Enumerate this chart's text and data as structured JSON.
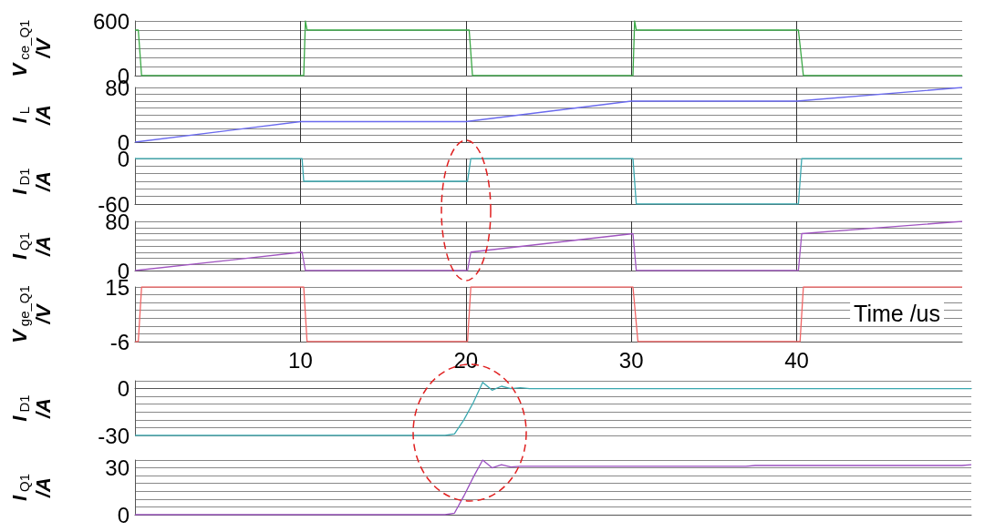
{
  "chart_data": [
    {
      "type": "line",
      "ylabel": "V$_{ce_Q1}$ /V",
      "xlim": [
        0,
        50
      ],
      "xticks": [
        10,
        20,
        30,
        40
      ],
      "ylim": [
        0,
        600
      ],
      "yticks": [
        0,
        {
          "value": 100,
          "label": null
        },
        {
          "value": 200,
          "label": null
        },
        {
          "value": 300,
          "label": null
        },
        {
          "value": 400,
          "label": null
        },
        {
          "value": 500,
          "label": null
        },
        600
      ],
      "grid": true,
      "tick_labels": "y",
      "marker": "none",
      "series": [
        {
          "color": "#3aa845",
          "x": [
            0,
            0.2,
            0.4,
            10.2,
            10.3,
            10.4,
            20.2,
            20.4,
            30.1,
            30.2,
            30.3,
            40.1,
            40.4,
            50
          ],
          "values": [
            500,
            500,
            0,
            0,
            600,
            500,
            500,
            0,
            0,
            600,
            500,
            500,
            0,
            0
          ]
        }
      ]
    },
    {
      "type": "line",
      "ylabel": "I$_{L}$ /A",
      "xlim": [
        0,
        50
      ],
      "xticks": [
        10,
        20,
        30,
        40
      ],
      "ylim": [
        0,
        80
      ],
      "yticks": [
        0,
        {
          "value": 10,
          "label": null
        },
        {
          "value": 20,
          "label": null
        },
        {
          "value": 30,
          "label": null
        },
        {
          "value": 40,
          "label": null
        },
        {
          "value": 50,
          "label": null
        },
        {
          "value": 60,
          "label": null
        },
        {
          "value": 70,
          "label": null
        },
        80
      ],
      "grid": true,
      "tick_labels": "y",
      "marker": "none",
      "series": [
        {
          "color": "#6a6aee",
          "x": [
            0,
            10,
            20,
            30,
            40,
            50
          ],
          "values": [
            0,
            30,
            30,
            60,
            60,
            80
          ]
        }
      ]
    },
    {
      "type": "line",
      "ylabel": "I$_{D1}$ /A",
      "xlim": [
        0,
        50
      ],
      "xticks": [
        10,
        20,
        30,
        40
      ],
      "ylim": [
        -60,
        0
      ],
      "yticks": [
        -60,
        {
          "value": -50,
          "label": null
        },
        {
          "value": -40,
          "label": null
        },
        {
          "value": -30,
          "label": null
        },
        {
          "value": -20,
          "label": null
        },
        {
          "value": -10,
          "label": null
        },
        0
      ],
      "grid": true,
      "tick_labels": "y",
      "marker": "none",
      "series": [
        {
          "color": "#3aa8b0",
          "x": [
            0,
            10.1,
            10.2,
            20.1,
            20.3,
            30.1,
            30.3,
            40.1,
            40.3,
            50
          ],
          "values": [
            0,
            0,
            -30,
            -30,
            0,
            0,
            -60,
            -60,
            0,
            0
          ]
        }
      ]
    },
    {
      "type": "line",
      "ylabel": "I$_{Q1}$ /A",
      "xlim": [
        0,
        50
      ],
      "xticks": [
        10,
        20,
        30,
        40
      ],
      "ylim": [
        0,
        80
      ],
      "yticks": [
        0,
        {
          "value": 10,
          "label": null
        },
        {
          "value": 20,
          "label": null
        },
        {
          "value": 30,
          "label": null
        },
        {
          "value": 40,
          "label": null
        },
        {
          "value": 50,
          "label": null
        },
        {
          "value": 60,
          "label": null
        },
        {
          "value": 70,
          "label": null
        },
        80
      ],
      "grid": true,
      "tick_labels": "y",
      "marker": "none",
      "series": [
        {
          "color": "#a055c0",
          "x": [
            0,
            10.1,
            10.3,
            20.1,
            20.3,
            30.1,
            30.3,
            40.1,
            40.3,
            50
          ],
          "values": [
            0,
            30,
            0,
            0,
            30,
            60,
            0,
            0,
            60,
            80
          ]
        }
      ]
    },
    {
      "type": "line",
      "ylabel": "V$_{ge_Q1}$ /V",
      "xlabel": "Time /us",
      "xlim": [
        0,
        50
      ],
      "xticks": [
        10,
        20,
        30,
        40
      ],
      "ylim": [
        -6,
        15
      ],
      "yticks": [
        -6,
        {
          "value": -3,
          "label": null
        },
        {
          "value": 0,
          "label": null
        },
        {
          "value": 3,
          "label": null
        },
        {
          "value": 6,
          "label": null
        },
        {
          "value": 9,
          "label": null
        },
        {
          "value": 12,
          "label": null
        },
        15
      ],
      "grid": true,
      "marker": "none",
      "series": [
        {
          "color": "#f06464",
          "x": [
            0,
            0.2,
            0.4,
            10.2,
            10.4,
            20.1,
            20.3,
            30.1,
            30.4,
            40.2,
            40.4,
            50
          ],
          "values": [
            -6,
            -6,
            15,
            15,
            -6,
            -6,
            15,
            15,
            -6,
            -6,
            15,
            15
          ]
        }
      ]
    },
    {
      "type": "line",
      "ylabel": "I$_{D1}$ /A",
      "categories": [
        null,
        null,
        null,
        null,
        null,
        null,
        null,
        null,
        null,
        null,
        null,
        null,
        null,
        null,
        null,
        null,
        null,
        null,
        null,
        null,
        null,
        null,
        null,
        null,
        null,
        null,
        null,
        null,
        null,
        null,
        null,
        null,
        null,
        null,
        null,
        null,
        null,
        null,
        null,
        null,
        null,
        null,
        null,
        null,
        null,
        null,
        null,
        null,
        null,
        null,
        null,
        null,
        null,
        null,
        null,
        null,
        null,
        null,
        null,
        null,
        null,
        null,
        null,
        null,
        null,
        null,
        null,
        null,
        null,
        null,
        null,
        null,
        null,
        null,
        null,
        null,
        null,
        null,
        null,
        null,
        null,
        null,
        null,
        null,
        null,
        null,
        null,
        null,
        null,
        null
      ],
      "ylim": [
        -30,
        5
      ],
      "yticks": [
        -30,
        {
          "value": -25,
          "label": null
        },
        {
          "value": -20,
          "label": null
        },
        {
          "value": -15,
          "label": null
        },
        {
          "value": -10,
          "label": null
        },
        {
          "value": -5,
          "label": null
        },
        0,
        {
          "value": 5,
          "label": null
        }
      ],
      "grid": "y",
      "tick_labels": "y",
      "marker": "none",
      "series": [
        {
          "color": "#3aa8b0",
          "values": [
            -30,
            -30,
            -30,
            -30,
            -30,
            -30,
            -30,
            -30,
            -30,
            -30,
            -30,
            -30,
            -30,
            -30,
            -30,
            -30,
            -30,
            -30,
            -30,
            -30,
            -30,
            -30,
            -30,
            -30,
            -30,
            -30,
            -30,
            -30,
            -30,
            -30,
            -30,
            -30,
            -30,
            -30,
            -29,
            -20,
            -9,
            4,
            -1,
            1.5,
            0,
            0.5,
            0,
            0,
            0,
            0,
            0,
            0,
            0,
            0,
            0,
            0,
            0,
            0,
            0,
            0,
            0,
            0,
            0,
            0,
            0,
            0,
            0,
            0,
            0,
            0,
            0,
            0,
            0,
            0,
            0,
            0,
            0,
            0,
            0,
            0,
            0,
            0,
            0,
            0,
            0,
            0,
            0,
            0,
            0,
            0,
            0,
            0,
            0,
            0
          ]
        }
      ]
    },
    {
      "type": "line",
      "ylabel": "I$_{Q1}$ /A",
      "categories": [
        null,
        null,
        null,
        null,
        null,
        null,
        null,
        null,
        null,
        null,
        null,
        null,
        null,
        null,
        null,
        null,
        null,
        null,
        null,
        null,
        null,
        null,
        null,
        null,
        null,
        null,
        null,
        null,
        null,
        null,
        null,
        null,
        null,
        null,
        null,
        null,
        null,
        null,
        null,
        null,
        null,
        null,
        null,
        null,
        null,
        null,
        null,
        null,
        null,
        null,
        null,
        null,
        null,
        null,
        null,
        null,
        null,
        null,
        null,
        null,
        null,
        null,
        null,
        null,
        null,
        null,
        null,
        null,
        null,
        null,
        null,
        null,
        null,
        null,
        null,
        null,
        null,
        null,
        null,
        null,
        null,
        null,
        null,
        null,
        null,
        null,
        null,
        null,
        null,
        null
      ],
      "ylim": [
        0,
        35
      ],
      "yticks": [
        0,
        {
          "value": 5,
          "label": null
        },
        {
          "value": 10,
          "label": null
        },
        {
          "value": 15,
          "label": null
        },
        {
          "value": 20,
          "label": null
        },
        {
          "value": 25,
          "label": null
        },
        30,
        {
          "value": 35,
          "label": null
        }
      ],
      "grid": "y",
      "tick_labels": "y",
      "marker": "none",
      "series": [
        {
          "color": "#9a50c0",
          "values": [
            0,
            0,
            0,
            0,
            0,
            0,
            0,
            0,
            0,
            0,
            0,
            0,
            0,
            0,
            0,
            0,
            0,
            0,
            0,
            0,
            0,
            0,
            0,
            0,
            0,
            0,
            0,
            0,
            0,
            0,
            0,
            0,
            0,
            0,
            1,
            12,
            24,
            35,
            30,
            32,
            30.5,
            31,
            31,
            31,
            31,
            31,
            31,
            31,
            31,
            31,
            31,
            31,
            31,
            31,
            31,
            31,
            31,
            31,
            31,
            31,
            31,
            31,
            31,
            31,
            31,
            31,
            31.5,
            31.5,
            31.5,
            31.5,
            31.5,
            31.5,
            31.5,
            31.5,
            31.5,
            31.5,
            31.5,
            31.5,
            31.5,
            31.5,
            31.5,
            31.5,
            31.5,
            31.5,
            31.5,
            31.5,
            31.5,
            31.5,
            31.5,
            32
          ]
        }
      ]
    }
  ]
}
